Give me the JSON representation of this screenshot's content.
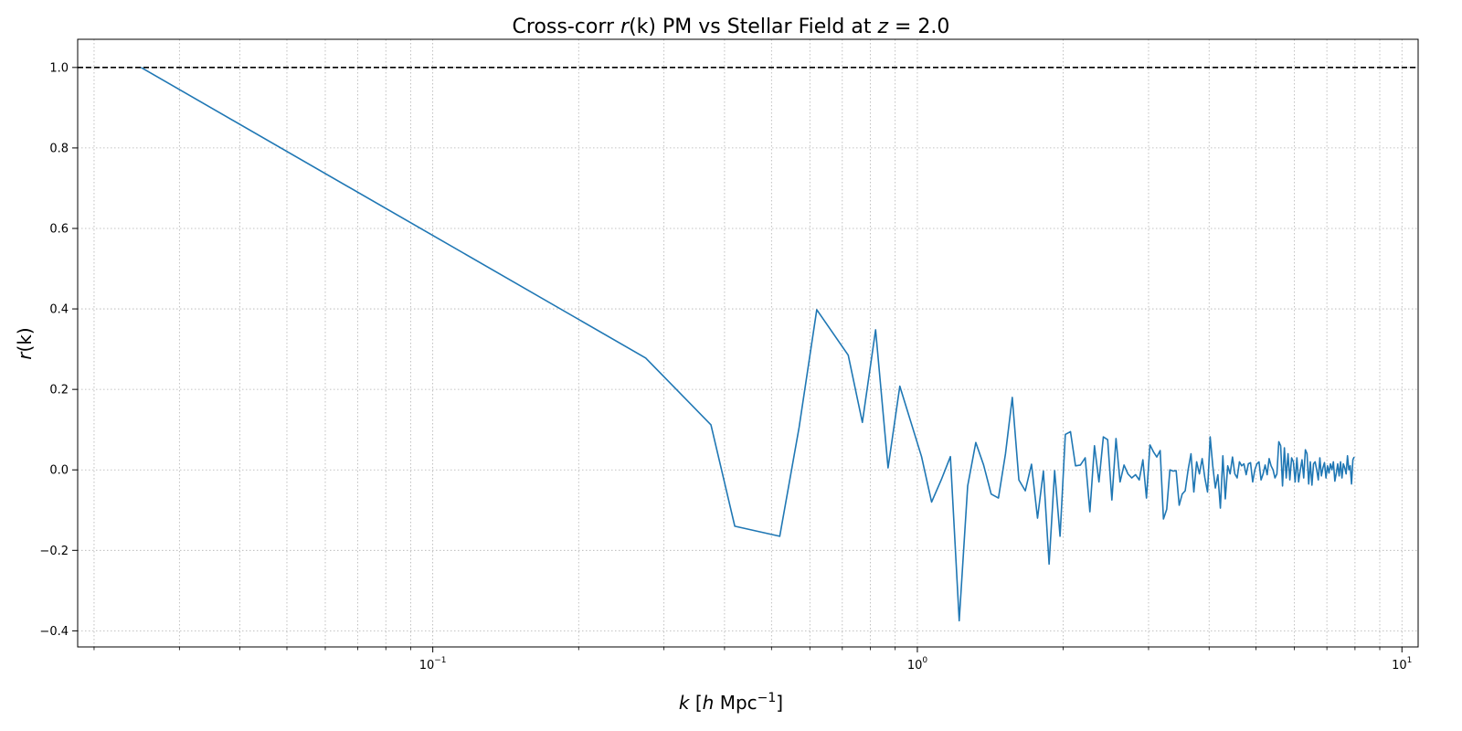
{
  "chart_data": {
    "type": "line",
    "title": "Cross-corr r(k) PM vs Stellar Field at z = 2.0",
    "title_parts": {
      "prefix": "Cross-corr ",
      "r_symbol": "r",
      "r_arg": "(k)",
      "middle": " PM vs Stellar Field at ",
      "z_symbol": "z",
      "z_eq": " = 2.0"
    },
    "xlabel": "k [h Mpc⁻¹]",
    "xlabel_parts": {
      "k": "k",
      "open": " [",
      "h": "h",
      "mpc": " Mpc",
      "exp": "−1",
      "close": "]"
    },
    "ylabel": "r(k)",
    "ylabel_parts": {
      "r": "r",
      "arg": "(k)"
    },
    "x_scale": "log",
    "xlim": [
      0.0185,
      10.8
    ],
    "ylim": [
      -0.44,
      1.07
    ],
    "grid": true,
    "legend": "none",
    "x_ticks": [
      {
        "value": 0.1,
        "base": "10",
        "exp": "−1"
      },
      {
        "value": 1,
        "base": "10",
        "exp": "0"
      },
      {
        "value": 10,
        "base": "10",
        "exp": "1"
      }
    ],
    "y_ticks": [
      {
        "value": -0.4,
        "label": "−0.4"
      },
      {
        "value": -0.2,
        "label": "−0.2"
      },
      {
        "value": 0.0,
        "label": "0.0"
      },
      {
        "value": 0.2,
        "label": "0.2"
      },
      {
        "value": 0.4,
        "label": "0.4"
      },
      {
        "value": 0.6,
        "label": "0.6"
      },
      {
        "value": 0.8,
        "label": "0.8"
      },
      {
        "value": 1.0,
        "label": "1.0"
      }
    ],
    "reference_line": {
      "y": 1.0,
      "style": "dashed",
      "color": "#000000"
    },
    "series": [
      {
        "color": "#1f77b4",
        "x": [
          0.025,
          0.275,
          0.375,
          0.42,
          0.52,
          0.57,
          0.62,
          0.72,
          0.77,
          0.82,
          0.87,
          0.92,
          1.02,
          1.07,
          1.12,
          1.17,
          1.22,
          1.27,
          1.32,
          1.37,
          1.42,
          1.47,
          1.52,
          1.57,
          1.62,
          1.67,
          1.72,
          1.77,
          1.82,
          1.87,
          1.92,
          1.97,
          2.02,
          2.07,
          2.12,
          2.17,
          2.22,
          2.27,
          2.32,
          2.37,
          2.42,
          2.47,
          2.52,
          2.57,
          2.62,
          2.67,
          2.72,
          2.77,
          2.82,
          2.87,
          2.92,
          2.97,
          3.02,
          3.07,
          3.12,
          3.17,
          3.22,
          3.27,
          3.32,
          3.37,
          3.42,
          3.47,
          3.52,
          3.57,
          3.62,
          3.67,
          3.72,
          3.77,
          3.82,
          3.87,
          3.92,
          3.97,
          4.02,
          4.07,
          4.12,
          4.17,
          4.22,
          4.27,
          4.32,
          4.37,
          4.42,
          4.47,
          4.52,
          4.57,
          4.62,
          4.67,
          4.72,
          4.77,
          4.82,
          4.87,
          4.92,
          4.97,
          5.02,
          5.07,
          5.12,
          5.17,
          5.22,
          5.27,
          5.32,
          5.37,
          5.42,
          5.47,
          5.52,
          5.57,
          5.62,
          5.67,
          5.72,
          5.77,
          5.82,
          5.87,
          5.92,
          5.97,
          6.02,
          6.07,
          6.12,
          6.17,
          6.22,
          6.27,
          6.32,
          6.37,
          6.42,
          6.47,
          6.52,
          6.57,
          6.62,
          6.67,
          6.72,
          6.77,
          6.82,
          6.87,
          6.92,
          6.97,
          7.02,
          7.07,
          7.12,
          7.17,
          7.22,
          7.27,
          7.32,
          7.37,
          7.42,
          7.47,
          7.52,
          7.57,
          7.62,
          7.67,
          7.72,
          7.77,
          7.82,
          7.87,
          7.92,
          7.97
        ],
        "y": [
          1.0,
          0.278,
          0.112,
          -0.14,
          -0.165,
          0.105,
          0.398,
          0.285,
          0.118,
          0.348,
          0.005,
          0.208,
          0.033,
          -0.08,
          -0.025,
          0.033,
          -0.375,
          -0.04,
          0.068,
          0.012,
          -0.06,
          -0.07,
          0.04,
          0.18,
          -0.025,
          -0.052,
          0.014,
          -0.12,
          -0.003,
          -0.234,
          -0.002,
          -0.165,
          0.088,
          0.095,
          0.01,
          0.012,
          0.03,
          -0.104,
          0.06,
          -0.03,
          0.082,
          0.075,
          -0.075,
          0.078,
          -0.03,
          0.012,
          -0.01,
          -0.02,
          -0.012,
          -0.025,
          0.025,
          -0.07,
          0.062,
          0.045,
          0.032,
          0.048,
          -0.122,
          -0.098,
          0.0,
          -0.003,
          -0.002,
          -0.088,
          -0.06,
          -0.052,
          0.0,
          0.04,
          -0.055,
          0.02,
          -0.01,
          0.028,
          -0.02,
          -0.055,
          0.082,
          0.01,
          -0.045,
          -0.012,
          -0.095,
          0.035,
          -0.072,
          0.01,
          -0.01,
          0.032,
          -0.01,
          -0.02,
          0.02,
          0.01,
          0.015,
          -0.012,
          0.015,
          0.018,
          -0.03,
          0.0,
          0.015,
          0.02,
          -0.025,
          -0.01,
          0.012,
          -0.012,
          0.028,
          0.01,
          0.0,
          -0.02,
          -0.01,
          0.07,
          0.06,
          -0.04,
          0.055,
          -0.02,
          0.04,
          -0.025,
          0.03,
          0.02,
          -0.03,
          0.03,
          -0.03,
          0.0,
          0.025,
          -0.02,
          0.05,
          0.04,
          -0.035,
          0.02,
          -0.038,
          0.015,
          0.02,
          0.0,
          -0.025,
          0.03,
          -0.015,
          0.005,
          0.018,
          -0.02,
          0.01,
          -0.008,
          0.015,
          0.0,
          0.02,
          -0.028,
          -0.008,
          0.015,
          -0.015,
          0.02,
          -0.02,
          0.015,
          0.005,
          -0.01,
          0.035,
          0.0,
          0.01,
          -0.035,
          0.025,
          0.032
        ]
      }
    ]
  }
}
